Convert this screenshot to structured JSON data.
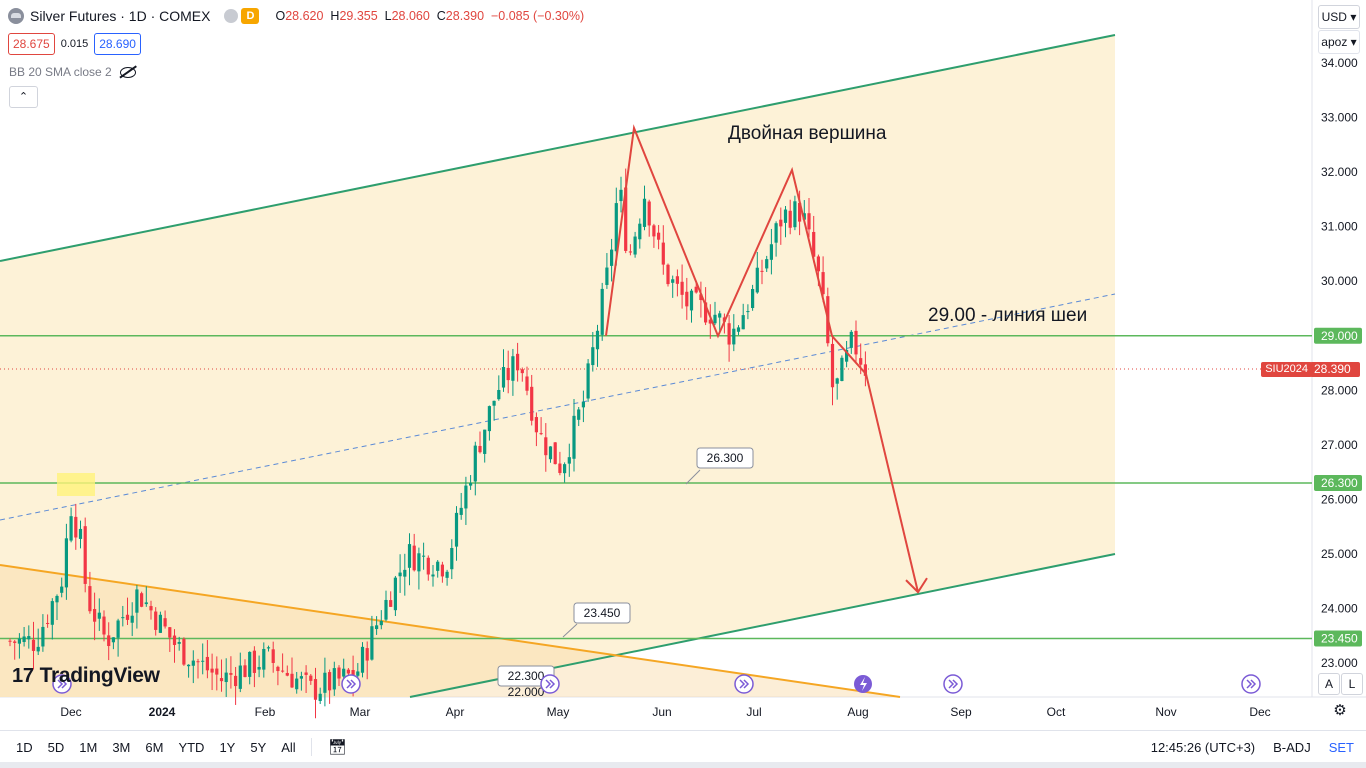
{
  "header": {
    "title": "Silver Futures · 1D · COMEX",
    "badge": "D",
    "ohlc": {
      "o_label": "O",
      "o": "28.620",
      "h_label": "H",
      "h": "29.355",
      "l_label": "L",
      "l": "28.060",
      "c_label": "C",
      "c": "28.390",
      "chg": "−0.085 (−0.30%)"
    }
  },
  "quote": {
    "sell": "28.675",
    "spread": "0.015",
    "buy": "28.690"
  },
  "indicator": {
    "label": "BB 20 SMA close 2"
  },
  "currency": {
    "value": "USD",
    "scale": "apoz"
  },
  "annotations": {
    "pattern": "Двойная вершина",
    "neckline": "29.00 - линия шеи"
  },
  "price_tag": {
    "symbol": "SIU2024",
    "value": "28.390"
  },
  "level_labels": [
    "26.300",
    "23.450",
    "22.300",
    "22.000"
  ],
  "scale_labels": {
    "a": "A",
    "l": "L"
  },
  "logo": {
    "mark": "17",
    "text": "TradingView"
  },
  "toolbar": {
    "ranges": [
      "1D",
      "5D",
      "1M",
      "3M",
      "6M",
      "YTD",
      "1Y",
      "5Y",
      "All"
    ],
    "time": "12:45:26 (UTC+3)",
    "adj": "B-ADJ",
    "session": "SET"
  },
  "colors": {
    "up": "#089981",
    "down": "#f23645",
    "channel_fill": "#fdf0d0",
    "channel_line": "#2e9e6e",
    "level_line": "#5cb85c",
    "orange": "#f5a623",
    "pattern": "#e0463f"
  },
  "chart_data": {
    "type": "candlestick",
    "symbol": "SIU2024",
    "xaxis_ticks": [
      "Dec",
      "2024",
      "Feb",
      "Mar",
      "Apr",
      "May",
      "Jun",
      "Jul",
      "Aug",
      "Sep",
      "Oct",
      "Nov",
      "Dec"
    ],
    "yaxis_ticks": [
      "34.000",
      "33.000",
      "32.000",
      "31.000",
      "30.000",
      "29.000",
      "28.000",
      "27.000",
      "26.000",
      "25.000",
      "24.000",
      "23.000"
    ],
    "ylim": [
      22.4,
      34.6
    ],
    "horizontal_levels": [
      {
        "value": 29.0,
        "label": "29.000"
      },
      {
        "value": 26.3,
        "label": "26.300"
      },
      {
        "value": 23.45,
        "label": "23.450"
      }
    ],
    "current_price": 28.39,
    "close_path": [
      {
        "date": "2023-11-20",
        "close": 23.4
      },
      {
        "date": "2023-11-28",
        "close": 24.5
      },
      {
        "date": "2023-12-01",
        "close": 25.9
      },
      {
        "date": "2023-12-04",
        "close": 25.2
      },
      {
        "date": "2023-12-06",
        "close": 24.2
      },
      {
        "date": "2023-12-12",
        "close": 23.4
      },
      {
        "date": "2023-12-22",
        "close": 24.3
      },
      {
        "date": "2024-01-03",
        "close": 23.3
      },
      {
        "date": "2024-01-17",
        "close": 22.7
      },
      {
        "date": "2024-01-31",
        "close": 23.1
      },
      {
        "date": "2024-02-14",
        "close": 22.5
      },
      {
        "date": "2024-02-28",
        "close": 22.8
      },
      {
        "date": "2024-03-06",
        "close": 23.8
      },
      {
        "date": "2024-03-15",
        "close": 25.0
      },
      {
        "date": "2024-03-27",
        "close": 24.8
      },
      {
        "date": "2024-04-05",
        "close": 26.8
      },
      {
        "date": "2024-04-12",
        "close": 28.0
      },
      {
        "date": "2024-04-19",
        "close": 28.6
      },
      {
        "date": "2024-04-25",
        "close": 27.2
      },
      {
        "date": "2024-05-02",
        "close": 26.6
      },
      {
        "date": "2024-05-09",
        "close": 27.8
      },
      {
        "date": "2024-05-17",
        "close": 30.3
      },
      {
        "date": "2024-05-20",
        "close": 31.8
      },
      {
        "date": "2024-05-23",
        "close": 30.4
      },
      {
        "date": "2024-05-28",
        "close": 31.6
      },
      {
        "date": "2024-06-03",
        "close": 30.2
      },
      {
        "date": "2024-06-10",
        "close": 29.6
      },
      {
        "date": "2024-06-19",
        "close": 29.4
      },
      {
        "date": "2024-06-24",
        "close": 29.0
      },
      {
        "date": "2024-07-01",
        "close": 29.8
      },
      {
        "date": "2024-07-10",
        "close": 31.2
      },
      {
        "date": "2024-07-16",
        "close": 31.3
      },
      {
        "date": "2024-07-22",
        "close": 29.9
      },
      {
        "date": "2024-07-26",
        "close": 27.9
      },
      {
        "date": "2024-08-01",
        "close": 28.9
      },
      {
        "date": "2024-08-05",
        "close": 28.4
      }
    ],
    "pattern_points": [
      29.0,
      32.8,
      29.0,
      32.0,
      29.0,
      28.3
    ],
    "projection": {
      "from": 28.3,
      "to": 24.3
    }
  }
}
